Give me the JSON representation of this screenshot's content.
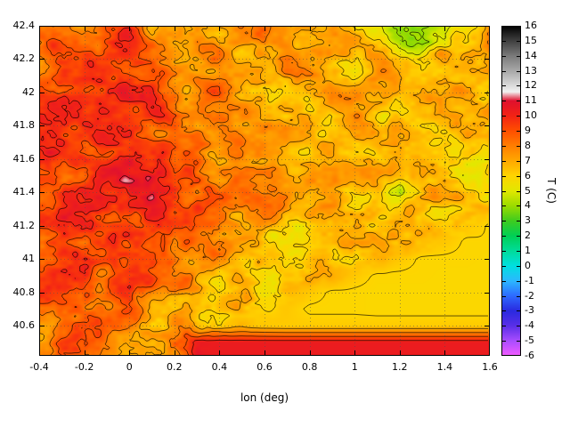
{
  "figure": {
    "background": "#ffffff"
  },
  "chart_data": {
    "type": "heatmap",
    "title": "",
    "xlabel": "lon (deg)",
    "ylabel": "",
    "x_range": [
      -0.4,
      1.6
    ],
    "y_range": [
      40.42,
      42.4
    ],
    "grid": "dotted",
    "x_tick_values": [
      -0.4,
      -0.2,
      0,
      0.2,
      0.4,
      0.6,
      0.8,
      1,
      1.2,
      1.4,
      1.6
    ],
    "x_tick_labels": [
      "-0.4",
      "-0.2",
      "0",
      "0.2",
      "0.4",
      "0.6",
      "0.8",
      "1",
      "1.2",
      "1.4",
      "1.6"
    ],
    "y_tick_values": [
      40.6,
      40.8,
      41,
      41.2,
      41.4,
      41.6,
      41.8,
      42,
      42.2,
      42.4
    ],
    "y_tick_labels": [
      "40.6",
      "40.8",
      "41",
      "41.2",
      "41.4",
      "41.6",
      "41.8",
      "42",
      "42.2",
      "42.4"
    ],
    "colorbar": {
      "label": "T (C)",
      "min": -6,
      "max": 16,
      "tick_step": 1,
      "tick_labels": [
        "16",
        "15",
        "14",
        "13",
        "12",
        "11",
        "10",
        "9",
        "8",
        "7",
        "6",
        "5",
        "4",
        "3",
        "2",
        "1",
        "0",
        "-1",
        "-2",
        "-3",
        "-4",
        "-5",
        "-6"
      ]
    },
    "palette": [
      [
        -6,
        "#f25cff"
      ],
      [
        -5,
        "#a94dff"
      ],
      [
        -4,
        "#5a2fe8"
      ],
      [
        -3,
        "#2a2ae0"
      ],
      [
        -2,
        "#2e6bff"
      ],
      [
        -1,
        "#2cb8ff"
      ],
      [
        0,
        "#00e0e0"
      ],
      [
        1,
        "#00dc9a"
      ],
      [
        2,
        "#00d055"
      ],
      [
        3,
        "#3fcc1f"
      ],
      [
        4,
        "#9cdc00"
      ],
      [
        5,
        "#e2e800"
      ],
      [
        6,
        "#ffd400"
      ],
      [
        7,
        "#ffa800"
      ],
      [
        8,
        "#ff7e00"
      ],
      [
        9,
        "#ff4f00"
      ],
      [
        10,
        "#f32315"
      ],
      [
        11,
        "#e0112e"
      ],
      [
        11.6,
        "#f2f2f2"
      ],
      [
        12,
        "#dcdcdc"
      ],
      [
        13,
        "#a8a8a8"
      ],
      [
        14,
        "#7a7a7a"
      ],
      [
        15,
        "#404040"
      ],
      [
        16,
        "#000000"
      ]
    ],
    "contour_levels": [
      3,
      4,
      5,
      6,
      7,
      8,
      9,
      10,
      11
    ],
    "noise": {
      "amplitude": 2.0,
      "base_scale": 8
    },
    "field": {
      "lon_start": -0.4,
      "lon_step": 0.1,
      "lat_start": 42.4,
      "lat_step": -0.1,
      "values": [
        [
          8.5,
          8,
          7.5,
          9,
          8.5,
          7,
          8,
          7.5,
          6.5,
          8,
          7,
          6.5,
          7.5,
          8,
          6,
          5,
          4,
          3.2,
          4.5,
          6.5,
          7.5
        ],
        [
          8,
          9,
          8.5,
          9.5,
          9,
          8,
          7.5,
          8,
          7,
          7.5,
          8,
          7,
          6.5,
          7,
          7.5,
          6,
          5,
          3.8,
          5,
          7,
          8
        ],
        [
          7.5,
          9,
          9.5,
          10,
          9,
          8.5,
          8,
          7.5,
          8,
          6.5,
          7,
          8,
          7,
          6.5,
          7,
          7,
          6.5,
          6,
          7,
          7,
          7.5
        ],
        [
          8,
          9.5,
          10,
          9,
          9.5,
          9,
          8.5,
          8,
          7,
          7.5,
          6.5,
          7,
          8,
          7,
          6.5,
          7,
          7,
          6.5,
          7,
          6.5,
          7
        ],
        [
          9,
          9,
          9.5,
          10,
          9,
          9,
          8,
          7.5,
          8,
          7,
          7,
          6.5,
          7,
          7.5,
          7,
          6.5,
          6.5,
          7,
          6.5,
          7,
          6.5
        ],
        [
          9.5,
          10,
          9,
          9.5,
          10,
          9,
          8.5,
          8,
          7.5,
          8,
          7,
          7,
          6.5,
          7,
          6.5,
          7,
          6.5,
          6.5,
          7,
          6.5,
          7
        ],
        [
          9,
          9.5,
          10,
          9,
          9.5,
          8.5,
          9,
          8,
          8,
          7,
          7.5,
          6.5,
          7,
          6.5,
          7,
          6.5,
          7,
          6.5,
          6.5,
          7,
          6.5
        ],
        [
          9.5,
          10,
          9,
          10,
          9,
          9.5,
          8.5,
          9,
          8,
          8,
          7,
          7,
          6.5,
          7,
          6.5,
          6.5,
          6.5,
          7,
          6.5,
          6.5,
          7
        ],
        [
          9,
          9.5,
          10,
          9.5,
          10,
          9,
          9,
          8.5,
          8,
          7.5,
          7,
          7,
          6.5,
          6.5,
          7,
          6.5,
          6.5,
          6.5,
          7,
          6,
          6.5
        ],
        [
          10,
          9.5,
          9,
          10,
          9.5,
          10,
          9,
          9,
          8,
          7.5,
          7,
          6.5,
          7,
          6.5,
          6.5,
          6.5,
          5.5,
          6.5,
          6,
          4.5,
          6
        ],
        [
          9.5,
          10,
          10,
          9,
          10,
          9.5,
          9,
          8.5,
          8,
          8,
          7,
          7,
          6.5,
          7,
          6.5,
          6,
          4.2,
          6,
          6.5,
          6,
          5.5
        ],
        [
          9,
          10,
          9.5,
          10,
          9.5,
          10,
          9,
          9,
          8,
          7.5,
          8,
          7,
          7,
          6.5,
          6,
          6.5,
          6,
          6,
          5.5,
          6,
          6
        ],
        [
          10,
          9.5,
          10,
          9,
          10,
          9.5,
          9,
          8.5,
          8,
          7,
          7,
          6.5,
          6.5,
          6,
          6.5,
          6,
          6.2,
          6.5,
          6.3,
          6.3,
          5.9
        ],
        [
          9.5,
          10,
          9,
          10,
          9.5,
          9,
          8.5,
          9,
          8,
          7,
          6.5,
          6.5,
          6,
          6.5,
          6.2,
          6.5,
          6.2,
          6.4,
          6.3,
          5.9,
          5.9
        ],
        [
          9,
          9.5,
          10,
          9,
          9,
          8.5,
          9,
          8,
          7.5,
          7,
          6.5,
          6,
          6.2,
          6,
          6.4,
          6.4,
          6.3,
          5.9,
          5.9,
          5.9,
          5.85
        ],
        [
          8.5,
          9,
          9.5,
          8.5,
          9,
          9,
          8,
          7.5,
          6.5,
          6.3,
          6,
          6.2,
          6.4,
          6.4,
          6.3,
          5.9,
          5.9,
          5.9,
          5.85,
          5.85,
          5.85
        ],
        [
          9,
          8.5,
          9,
          9.5,
          8.5,
          8,
          7.5,
          6.8,
          6.3,
          6.2,
          6.4,
          6.4,
          6.3,
          5.9,
          5.9,
          5.85,
          5.85,
          5.85,
          5.85,
          5.85,
          5.85
        ],
        [
          8.5,
          9,
          8.5,
          8,
          9,
          7.5,
          7,
          6.4,
          6.2,
          6.3,
          6.4,
          6.3,
          5.9,
          5.9,
          5.9,
          5.85,
          5.85,
          5.85,
          5.85,
          5.85,
          5.85
        ],
        [
          8,
          8.5,
          9,
          8,
          7.5,
          7,
          6.6,
          6.3,
          6.2,
          6.4,
          6.3,
          6.2,
          6.2,
          6.2,
          6.2,
          6.2,
          6.2,
          6.2,
          6.2,
          6.2,
          6.2
        ],
        [
          8,
          9,
          8.5,
          7.5,
          7,
          6.8,
          7.5,
          10.2,
          10.4,
          10.4,
          10.4,
          10.4,
          10.4,
          10.4,
          10.4,
          10.4,
          10.4,
          10.4,
          10.4,
          10.4,
          10.4
        ]
      ],
      "roughness": [
        [
          1,
          1,
          1,
          1,
          1,
          1,
          1,
          1,
          1,
          1,
          1,
          1,
          1,
          1,
          1,
          1,
          1,
          1,
          1,
          1,
          1
        ],
        [
          1,
          1,
          1,
          1,
          1,
          1,
          1,
          1,
          1,
          1,
          1,
          1,
          1,
          1,
          1,
          1,
          1,
          1,
          1,
          1,
          1
        ],
        [
          1,
          1,
          1,
          1,
          1,
          1,
          1,
          1,
          1,
          1,
          1,
          1,
          1,
          1,
          1,
          1,
          1,
          1,
          1,
          1,
          1
        ],
        [
          1,
          1,
          1,
          1,
          1,
          1,
          1,
          1,
          1,
          1,
          1,
          1,
          1,
          1,
          1,
          1,
          1,
          1,
          1,
          1,
          1
        ],
        [
          1,
          1,
          1,
          1,
          1,
          1,
          1,
          1,
          1,
          1,
          1,
          1,
          1,
          1,
          1,
          1,
          1,
          1,
          1,
          1,
          1
        ],
        [
          1,
          1,
          1,
          1,
          1,
          1,
          1,
          1,
          1,
          1,
          1,
          1,
          1,
          1,
          1,
          1,
          1,
          1,
          1,
          1,
          1
        ],
        [
          1,
          1,
          1,
          1,
          1,
          1,
          1,
          1,
          1,
          1,
          1,
          1,
          1,
          1,
          1,
          1,
          1,
          1,
          1,
          1,
          1
        ],
        [
          1,
          1,
          1,
          1,
          1,
          1,
          1,
          1,
          1,
          1,
          1,
          1,
          1,
          1,
          1,
          1,
          1,
          1,
          1,
          1,
          1
        ],
        [
          1,
          1,
          1,
          1,
          1,
          1,
          1,
          1,
          1,
          1,
          1,
          1,
          1,
          1,
          1,
          1,
          1,
          1,
          1,
          1,
          1
        ],
        [
          1,
          1,
          1,
          1,
          1,
          1,
          1,
          1,
          1,
          1,
          1,
          1,
          1,
          1,
          1,
          1,
          1,
          1,
          1,
          1,
          1
        ],
        [
          1,
          1,
          1,
          1,
          1,
          1,
          1,
          1,
          1,
          1,
          1,
          1,
          1,
          1,
          1,
          1,
          1,
          1,
          1,
          1,
          1
        ],
        [
          1,
          1,
          1,
          1,
          1,
          1,
          1,
          1,
          1,
          1,
          1,
          1,
          1,
          1,
          1,
          1,
          1,
          1,
          1,
          1,
          1
        ],
        [
          1,
          1,
          1,
          1,
          1,
          1,
          1,
          1,
          1,
          1,
          1,
          1,
          1,
          1,
          1,
          1,
          1,
          1,
          1,
          0.5,
          0
        ],
        [
          1,
          1,
          1,
          1,
          1,
          1,
          1,
          1,
          1,
          1,
          1,
          1,
          1,
          1,
          1,
          1,
          1,
          0.5,
          0,
          0,
          0
        ],
        [
          1,
          1,
          1,
          1,
          1,
          1,
          1,
          1,
          1,
          1,
          1,
          1,
          1,
          1,
          1,
          0.5,
          0,
          0,
          0,
          0,
          0
        ],
        [
          1,
          1,
          1,
          1,
          1,
          1,
          1,
          1,
          1,
          1,
          1,
          1,
          1,
          0.5,
          0,
          0,
          0,
          0,
          0,
          0,
          0
        ],
        [
          1,
          1,
          1,
          1,
          1,
          1,
          1,
          1,
          1,
          1,
          1,
          0.5,
          0,
          0,
          0,
          0,
          0,
          0,
          0,
          0,
          0
        ],
        [
          1,
          1,
          1,
          1,
          1,
          1,
          1,
          1,
          1,
          1,
          0.5,
          0,
          0,
          0,
          0,
          0,
          0,
          0,
          0,
          0,
          0
        ],
        [
          1,
          1,
          1,
          1,
          1,
          1,
          1,
          1,
          1,
          0.5,
          0,
          0,
          0,
          0,
          0,
          0,
          0,
          0,
          0,
          0,
          0
        ],
        [
          1,
          1,
          1,
          1,
          1,
          1,
          1,
          0.5,
          0,
          0,
          0,
          0,
          0,
          0,
          0,
          0,
          0,
          0,
          0,
          0,
          0
        ]
      ]
    }
  }
}
